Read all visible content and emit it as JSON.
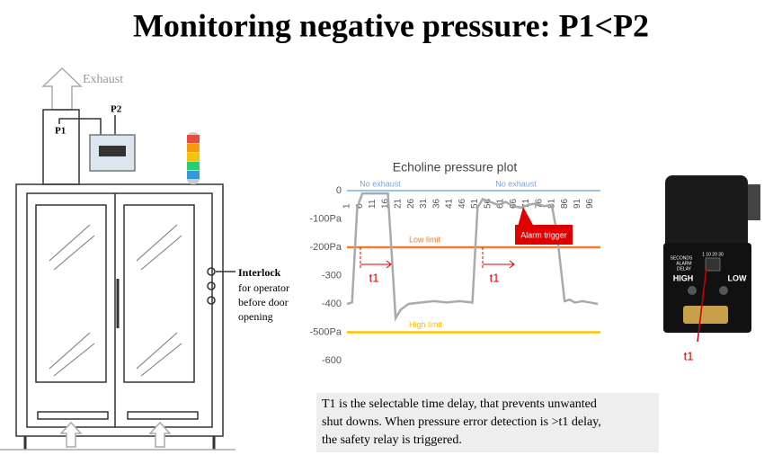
{
  "title": "Monitoring negative pressure: P1<P2",
  "cabinet": {
    "exhaust": "Exhaust",
    "p1": "P1",
    "p2": "P2",
    "interlock": "Interlock",
    "interlock_note": [
      "for operator",
      "before door",
      "opening"
    ]
  },
  "chart_data": {
    "type": "line",
    "title": "Echoline pressure plot",
    "x": [
      1,
      3,
      5,
      7,
      17,
      19,
      20,
      22,
      25,
      30,
      35,
      40,
      45,
      50,
      52,
      54,
      57,
      60,
      63,
      66,
      69,
      72,
      75,
      78,
      81,
      83,
      86,
      88,
      90,
      93,
      96,
      99
    ],
    "series": [
      {
        "color": "#aaaaaa",
        "values": [
          -400,
          -395,
          -60,
          -10,
          -10,
          -300,
          -450,
          -420,
          -400,
          -395,
          -390,
          -395,
          -390,
          -395,
          -60,
          -30,
          -40,
          -50,
          -40,
          -55,
          -60,
          -50,
          -45,
          -55,
          -50,
          -150,
          -390,
          -385,
          -395,
          -390,
          -395,
          -400
        ]
      }
    ],
    "xlim": [
      1,
      100
    ],
    "xticks": [
      1,
      6,
      11,
      16,
      21,
      26,
      31,
      36,
      41,
      46,
      51,
      56,
      61,
      66,
      71,
      76,
      81,
      86,
      91,
      96
    ],
    "ylim": [
      -600,
      0
    ],
    "yticks": [
      0,
      {
        "value": -100,
        "label": "-100Pa"
      },
      {
        "value": -200,
        "label": "-200Pa"
      },
      -300,
      -400,
      {
        "value": -500,
        "label": "-500Pa"
      },
      -600
    ],
    "zero_line_color": "#9dc3e6",
    "reference_lines": [
      {
        "name": "Low limit",
        "value": -200,
        "color": "#ed7d31"
      },
      {
        "name": "High limit",
        "value": -500,
        "color": "#ffc000"
      }
    ],
    "annotations": [
      "No exhaust",
      "No exhaust",
      "Alarm trigger",
      "t1",
      "t1"
    ]
  },
  "device": {
    "labels": [
      "SECONDS",
      "ALARM",
      "DELAY"
    ],
    "switch": "1 10 20 30",
    "high": "HIGH",
    "low": "LOW",
    "t1": "t1"
  },
  "caption": [
    "T1 is the selectable time delay, that prevents unwanted",
    "shut downs. When pressure error detection is >t1 delay,",
    "the safety relay is triggered."
  ]
}
